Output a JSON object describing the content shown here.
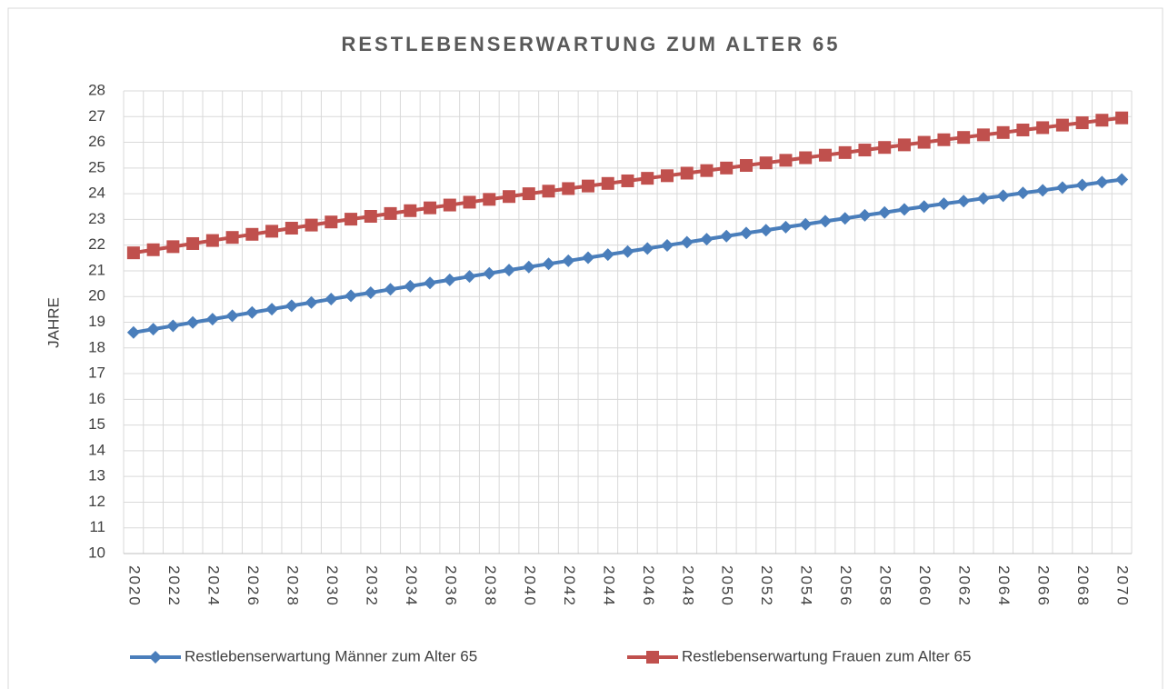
{
  "chart_data": {
    "type": "line",
    "title": "RESTLEBENSERWARTUNG ZUM ALTER 65",
    "y_label": "JAHRE",
    "categories": [
      "2020",
      null,
      "2022",
      null,
      "2024",
      null,
      "2026",
      null,
      "2028",
      null,
      "2030",
      null,
      "2032",
      null,
      "2034",
      null,
      "2036",
      null,
      "2038",
      null,
      "2040",
      null,
      "2042",
      null,
      "2044",
      null,
      "2046",
      null,
      "2048",
      null,
      "2050",
      null,
      "2052",
      null,
      "2054",
      null,
      "2056",
      null,
      "2058",
      null,
      "2060",
      null,
      "2062",
      null,
      "2064",
      null,
      "2066",
      null,
      "2068",
      null,
      "2070"
    ],
    "series": [
      {
        "name": "Restlebenserwartung Männer zum Alter 65",
        "color": "#4a7ebb",
        "marker": "diamond",
        "values": [
          18.6,
          18.73,
          18.86,
          18.99,
          19.12,
          19.25,
          19.38,
          19.51,
          19.64,
          19.77,
          19.9,
          20.03,
          20.15,
          20.28,
          20.4,
          20.53,
          20.65,
          20.78,
          20.9,
          21.03,
          21.15,
          21.27,
          21.39,
          21.51,
          21.63,
          21.75,
          21.87,
          21.99,
          22.11,
          22.23,
          22.35,
          22.47,
          22.58,
          22.7,
          22.81,
          22.93,
          23.04,
          23.16,
          23.27,
          23.39,
          23.5,
          23.61,
          23.71,
          23.82,
          23.92,
          24.03,
          24.13,
          24.24,
          24.34,
          24.45,
          24.55
        ]
      },
      {
        "name": "Restlebenserwartung Frauen zum Alter 65",
        "color": "#c0504d",
        "marker": "square",
        "values": [
          21.7,
          21.82,
          21.94,
          22.06,
          22.18,
          22.3,
          22.42,
          22.54,
          22.66,
          22.78,
          22.9,
          23.01,
          23.12,
          23.23,
          23.34,
          23.45,
          23.56,
          23.67,
          23.78,
          23.89,
          24.0,
          24.1,
          24.2,
          24.3,
          24.4,
          24.5,
          24.6,
          24.7,
          24.8,
          24.9,
          25.0,
          25.1,
          25.2,
          25.3,
          25.4,
          25.5,
          25.6,
          25.7,
          25.8,
          25.9,
          26.0,
          26.1,
          26.19,
          26.29,
          26.38,
          26.48,
          26.57,
          26.67,
          26.76,
          26.86,
          26.95
        ]
      }
    ],
    "ylim": [
      10,
      28
    ],
    "yticks": [
      10,
      11,
      12,
      13,
      14,
      15,
      16,
      17,
      18,
      19,
      20,
      21,
      22,
      23,
      24,
      25,
      26,
      27,
      28
    ],
    "grid": true,
    "legend": "bottom"
  }
}
